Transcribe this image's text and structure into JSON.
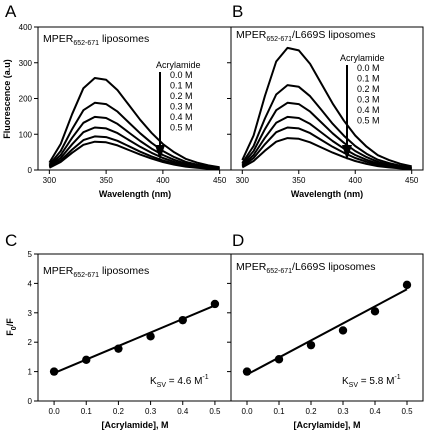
{
  "panels": {
    "A": "A",
    "B": "B",
    "C": "C",
    "D": "D"
  },
  "texts": {
    "title_a_main": "MPER",
    "title_a_sub": "652-671",
    "title_a_rest": " liposomes",
    "title_b_main": "MPER",
    "title_b_sub": "652-671",
    "title_b_rest": "/L669S liposomes",
    "ksv_c_prefix": "K",
    "ksv_c_sub": "SV",
    "ksv_c_value": " = 4.6 M",
    "ksv_c_sup": "-1",
    "ksv_d_prefix": "K",
    "ksv_d_sub": "SV",
    "ksv_d_value": " = 5.8 M",
    "ksv_d_sup": "-1",
    "fluor_ylabel": "Fluorescence (a.u)",
    "ratio_ylabel_main": "F",
    "ratio_ylabel_sub": "0",
    "ratio_ylabel_rest": "/F",
    "wavelength_xlabel": "Wavelength (nm)",
    "acrylamide_xlabel": "[Acrylamide], M",
    "legend_title": "Acrylamide"
  },
  "chart_data": [
    {
      "type": "line",
      "panel": "A",
      "xlabel": "Wavelength (nm)",
      "ylabel": "Fluorescence (a.u)",
      "xlim": [
        290,
        460
      ],
      "ylim": [
        0,
        400
      ],
      "xticks": [
        300,
        350,
        400,
        450
      ],
      "yticks": [
        0,
        100,
        200,
        300,
        400
      ],
      "legend_title": "Acrylamide",
      "legend": [
        "0.0 M",
        "0.1 M",
        "0.2 M",
        "0.3 M",
        "0.4 M",
        "0.5 M"
      ],
      "peak_x": 343,
      "spectrum_x": [
        300,
        310,
        320,
        330,
        340,
        350,
        360,
        370,
        380,
        390,
        400,
        410,
        420,
        430,
        440,
        450
      ],
      "spectrum_shape": [
        0.08,
        0.28,
        0.6,
        0.88,
        0.99,
        0.97,
        0.86,
        0.7,
        0.54,
        0.4,
        0.28,
        0.19,
        0.12,
        0.08,
        0.05,
        0.03
      ],
      "series": [
        {
          "name": "0.0 M",
          "peak": 260
        },
        {
          "name": "0.1 M",
          "peak": 190
        },
        {
          "name": "0.2 M",
          "peak": 150
        },
        {
          "name": "0.3 M",
          "peak": 120
        },
        {
          "name": "0.4 M",
          "peak": 95
        },
        {
          "name": "0.5 M",
          "peak": 80
        }
      ]
    },
    {
      "type": "line",
      "panel": "B",
      "xlabel": "Wavelength (nm)",
      "xlim": [
        290,
        460
      ],
      "ylim": [
        0,
        400
      ],
      "xticks": [
        300,
        350,
        400,
        450
      ],
      "legend_title": "Acrylamide",
      "legend": [
        "0.0 M",
        "0.1 M",
        "0.2 M",
        "0.3 M",
        "0.4 M",
        "0.5 M"
      ],
      "peak_x": 345,
      "spectrum_x": [
        300,
        310,
        320,
        330,
        340,
        350,
        360,
        370,
        380,
        390,
        400,
        410,
        420,
        430,
        440,
        450
      ],
      "spectrum_shape": [
        0.08,
        0.28,
        0.6,
        0.88,
        0.99,
        0.97,
        0.86,
        0.7,
        0.54,
        0.4,
        0.28,
        0.19,
        0.12,
        0.08,
        0.05,
        0.03
      ],
      "series": [
        {
          "name": "0.0 M",
          "peak": 345
        },
        {
          "name": "0.1 M",
          "peak": 240
        },
        {
          "name": "0.2 M",
          "peak": 190
        },
        {
          "name": "0.3 M",
          "peak": 150
        },
        {
          "name": "0.4 M",
          "peak": 120
        },
        {
          "name": "0.5 M",
          "peak": 90
        }
      ]
    },
    {
      "type": "scatter",
      "panel": "C",
      "xlabel": "[Acrylamide], M",
      "ylabel": "F0/F",
      "xlim": [
        -0.05,
        0.55
      ],
      "ylim": [
        0,
        5
      ],
      "xticks": [
        0.0,
        0.1,
        0.2,
        0.3,
        0.4,
        0.5
      ],
      "yticks": [
        0,
        1,
        2,
        3,
        4,
        5
      ],
      "x": [
        0.0,
        0.1,
        0.2,
        0.3,
        0.4,
        0.5
      ],
      "y": [
        1.0,
        1.4,
        1.78,
        2.2,
        2.75,
        3.3
      ],
      "fit": {
        "x": [
          0.0,
          0.5
        ],
        "y": [
          0.95,
          3.25
        ]
      },
      "annotation": "KSV = 4.6 M-1"
    },
    {
      "type": "scatter",
      "panel": "D",
      "xlabel": "[Acrylamide], M",
      "xlim": [
        -0.05,
        0.55
      ],
      "ylim": [
        0,
        5
      ],
      "xticks": [
        0.0,
        0.1,
        0.2,
        0.3,
        0.4,
        0.5
      ],
      "x": [
        0.0,
        0.1,
        0.2,
        0.3,
        0.4,
        0.5
      ],
      "y": [
        1.0,
        1.42,
        1.9,
        2.4,
        3.05,
        3.95
      ],
      "fit": {
        "x": [
          0.0,
          0.5
        ],
        "y": [
          0.9,
          3.8
        ]
      },
      "annotation": "KSV = 5.8 M-1"
    }
  ]
}
